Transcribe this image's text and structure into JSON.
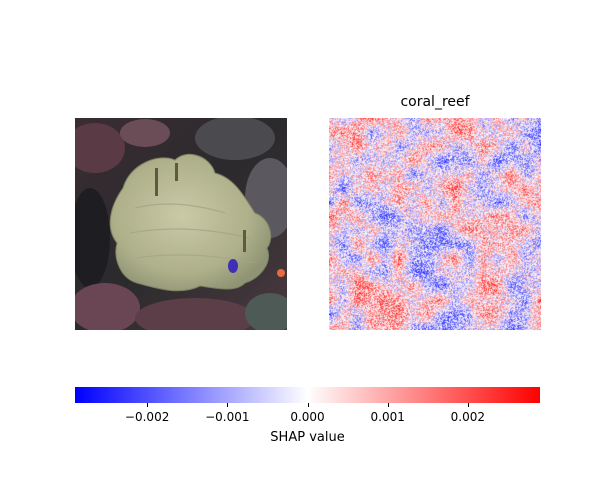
{
  "chart_data": {
    "type": "heatmap",
    "panels": [
      {
        "name": "input-image",
        "content": "coral reef photograph",
        "title": ""
      },
      {
        "name": "shap-map",
        "title": "coral_reef"
      }
    ],
    "colorbar": {
      "label": "SHAP value",
      "range": [
        -0.0029,
        0.0029
      ],
      "colormap": [
        "#0000ff",
        "#ffffff",
        "#ff0000"
      ],
      "ticks": [
        {
          "value": -0.002,
          "label": "−0.002"
        },
        {
          "value": -0.001,
          "label": "−0.001"
        },
        {
          "value": 0.0,
          "label": "0.000"
        },
        {
          "value": 0.001,
          "label": "0.001"
        },
        {
          "value": 0.002,
          "label": "0.002"
        }
      ]
    }
  }
}
